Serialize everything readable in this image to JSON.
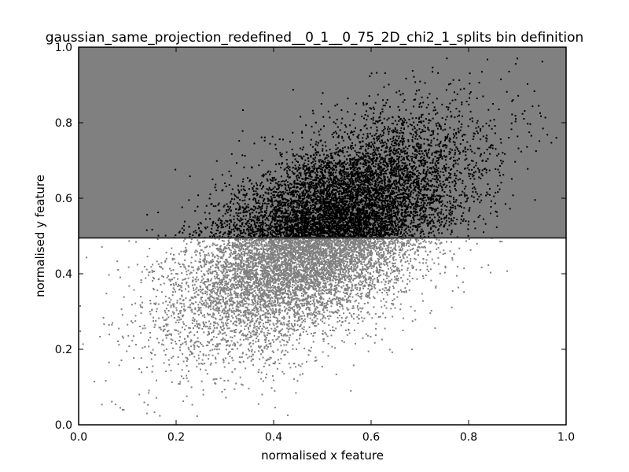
{
  "chart_data": {
    "type": "scatter",
    "title": "gaussian_same_projection_redefined__0_1__0_75_2D_chi2_1_splits bin definition",
    "xlabel": "normalised x feature",
    "ylabel": "normalised y feature",
    "xlim": [
      0.0,
      1.0
    ],
    "ylim": [
      0.0,
      1.0
    ],
    "xticks": [
      "0.0",
      "0.2",
      "0.4",
      "0.6",
      "0.8",
      "1.0"
    ],
    "yticks": [
      "0.0",
      "0.2",
      "0.4",
      "0.6",
      "0.8",
      "1.0"
    ],
    "grid": false,
    "legend": "none",
    "split": {
      "axis": "y",
      "value": 0.495,
      "upper_bin_color": "#808080",
      "lower_bin_color": "#ffffff",
      "line_color": "#333333"
    },
    "distribution": {
      "kind": "correlated 2D gaussian",
      "mean": [
        0.5,
        0.5
      ],
      "std": [
        0.14,
        0.14
      ],
      "correlation": 0.6,
      "n_points_approx": 14000
    },
    "series_colors": {
      "above_split": "#000000",
      "below_split": "#808080"
    },
    "sample_points": [
      [
        0.53,
        0.57
      ],
      [
        0.45,
        0.52
      ],
      [
        0.62,
        0.66
      ],
      [
        0.38,
        0.4
      ],
      [
        0.3,
        0.32
      ],
      [
        0.72,
        0.74
      ],
      [
        0.2,
        0.25
      ],
      [
        0.85,
        0.85
      ],
      [
        0.98,
        0.76
      ],
      [
        0.9,
        0.97
      ],
      [
        0.09,
        0.04
      ],
      [
        0.14,
        0.03
      ]
    ]
  }
}
